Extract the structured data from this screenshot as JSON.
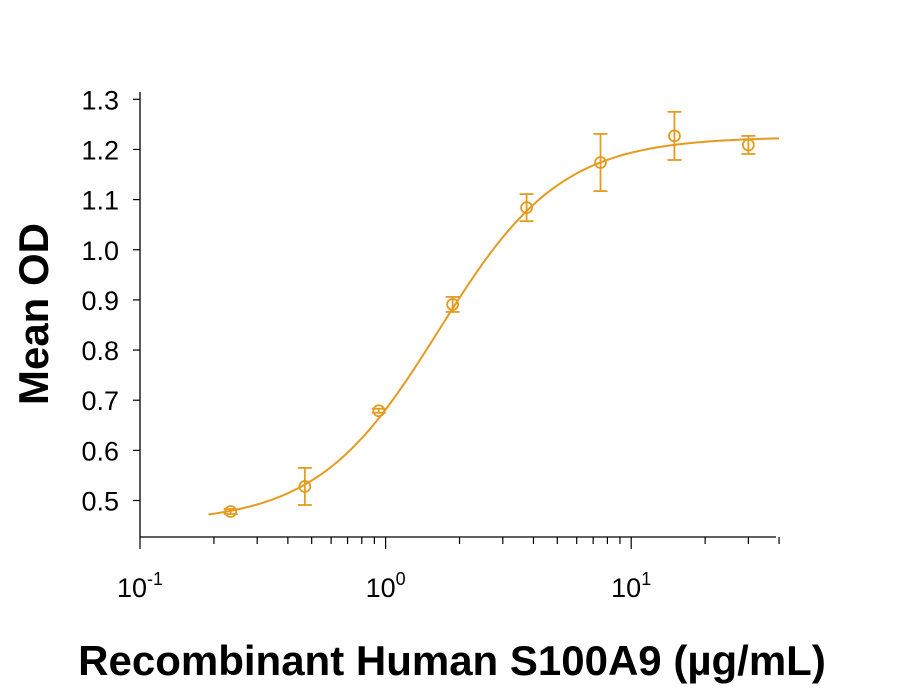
{
  "chart_data": {
    "type": "scatter",
    "title": "",
    "xlabel": "Recombinant Human S100A9 (µg/mL)",
    "ylabel": "Mean OD",
    "x_scale": "log",
    "xlim": [
      0.1,
      40
    ],
    "ylim": [
      0.43,
      1.31
    ],
    "x_ticks": [
      {
        "value": 0.1,
        "base": "10",
        "exp": "-1"
      },
      {
        "value": 1,
        "base": "10",
        "exp": "0"
      },
      {
        "value": 10,
        "base": "10",
        "exp": "1"
      }
    ],
    "y_ticks": [
      0.5,
      0.6,
      0.7,
      0.8,
      0.9,
      1.0,
      1.1,
      1.2,
      1.3
    ],
    "y_tick_labels": [
      "0.5",
      "0.6",
      "0.7",
      "0.8",
      "0.9",
      "1.0",
      "1.1",
      "1.2",
      "1.3"
    ],
    "grid": false,
    "legend": "none",
    "color": "#E59B1F",
    "series": [
      {
        "points": [
          {
            "x": 0.234,
            "y": 0.478,
            "err": 0.005
          },
          {
            "x": 0.469,
            "y": 0.528,
            "err": 0.037
          },
          {
            "x": 0.938,
            "y": 0.679,
            "err": 0.004
          },
          {
            "x": 1.875,
            "y": 0.891,
            "err": 0.015
          },
          {
            "x": 3.75,
            "y": 1.084,
            "err": 0.027
          },
          {
            "x": 7.5,
            "y": 1.174,
            "err": 0.057
          },
          {
            "x": 15,
            "y": 1.227,
            "err": 0.048
          },
          {
            "x": 30,
            "y": 1.209,
            "err": 0.018
          }
        ],
        "fit": {
          "model": "4PL",
          "bottom": 0.455,
          "top": 1.225,
          "ec50": 1.65,
          "hill": 1.75,
          "x_range": [
            0.19,
            40
          ]
        }
      }
    ]
  }
}
